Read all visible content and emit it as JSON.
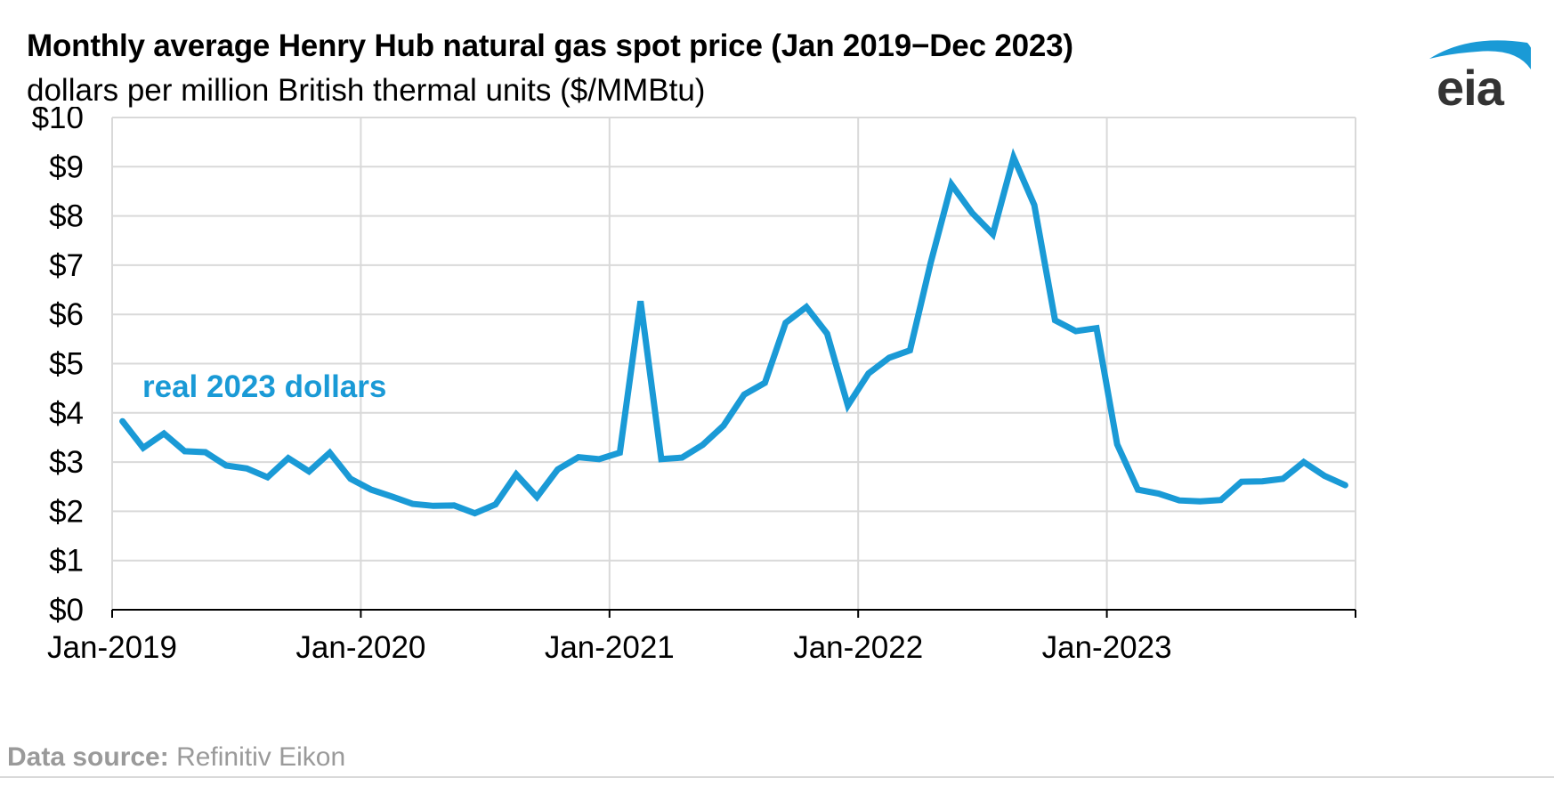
{
  "title": "Monthly average Henry Hub natural gas spot price (Jan 2019−Dec 2023)",
  "subtitle": "dollars per million British thermal units ($/MMBtu)",
  "logo_text": "eia",
  "source": {
    "label": "Data source:",
    "value": "Refinitiv Eikon"
  },
  "colors": {
    "series": "#1a9ad6",
    "grid": "#d9d9d9",
    "axis": "#000000",
    "logo_arc": "#1a9ad6",
    "logo_text": "#333333"
  },
  "chart_data": {
    "type": "line",
    "title": "Monthly average Henry Hub natural gas spot price (Jan 2019−Dec 2023)",
    "ylabel": "dollars per million British thermal units ($/MMBtu)",
    "xlabel": "",
    "ylim": [
      0,
      10
    ],
    "y_ticks": [
      0,
      1,
      2,
      3,
      4,
      5,
      6,
      7,
      8,
      9,
      10
    ],
    "y_tick_labels": [
      "$0",
      "$1",
      "$2",
      "$3",
      "$4",
      "$5",
      "$6",
      "$7",
      "$8",
      "$9",
      "$10"
    ],
    "x_ticks": [
      "2019-01",
      "2020-01",
      "2021-01",
      "2022-01",
      "2023-01"
    ],
    "x_tick_labels": [
      "Jan-2019",
      "Jan-2020",
      "Jan-2021",
      "Jan-2022",
      "Jan-2023"
    ],
    "xlim": [
      "2019-01",
      "2024-01"
    ],
    "grid": true,
    "legend": "none",
    "series": [
      {
        "name": "real 2023 dollars",
        "x": [
          "2019-01",
          "2019-02",
          "2019-03",
          "2019-04",
          "2019-05",
          "2019-06",
          "2019-07",
          "2019-08",
          "2019-09",
          "2019-10",
          "2019-11",
          "2019-12",
          "2020-01",
          "2020-02",
          "2020-03",
          "2020-04",
          "2020-05",
          "2020-06",
          "2020-07",
          "2020-08",
          "2020-09",
          "2020-10",
          "2020-11",
          "2020-12",
          "2021-01",
          "2021-02",
          "2021-03",
          "2021-04",
          "2021-05",
          "2021-06",
          "2021-07",
          "2021-08",
          "2021-09",
          "2021-10",
          "2021-11",
          "2021-12",
          "2022-01",
          "2022-02",
          "2022-03",
          "2022-04",
          "2022-05",
          "2022-06",
          "2022-07",
          "2022-08",
          "2022-09",
          "2022-10",
          "2022-11",
          "2022-12",
          "2023-01",
          "2023-02",
          "2023-03",
          "2023-04",
          "2023-05",
          "2023-06",
          "2023-07",
          "2023-08",
          "2023-09",
          "2023-10",
          "2023-11",
          "2023-12"
        ],
        "values": [
          3.83,
          3.29,
          3.58,
          3.22,
          3.2,
          2.93,
          2.87,
          2.69,
          3.08,
          2.81,
          3.19,
          2.66,
          2.44,
          2.3,
          2.15,
          2.11,
          2.12,
          1.96,
          2.14,
          2.75,
          2.29,
          2.85,
          3.1,
          3.06,
          3.19,
          6.27,
          3.06,
          3.09,
          3.35,
          3.74,
          4.37,
          4.61,
          5.83,
          6.15,
          5.61,
          4.15,
          4.8,
          5.12,
          5.27,
          7.05,
          8.64,
          8.06,
          7.63,
          9.19,
          8.22,
          5.88,
          5.66,
          5.72,
          3.36,
          2.44,
          2.36,
          2.22,
          2.2,
          2.23,
          2.6,
          2.61,
          2.66,
          3.0,
          2.72,
          2.53
        ]
      }
    ]
  }
}
